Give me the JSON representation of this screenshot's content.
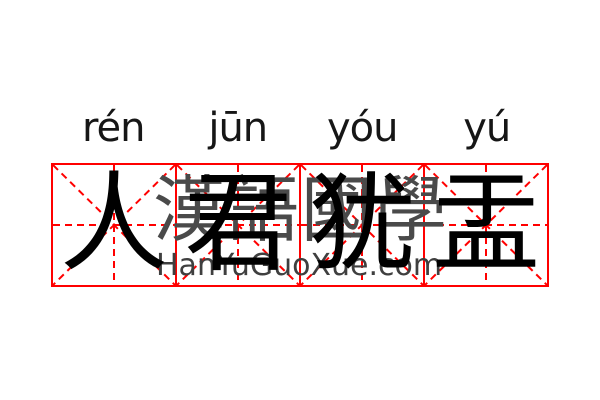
{
  "colors": {
    "grid_red": "#ff0000",
    "ink_black": "#000000",
    "watermark_gray": "#4a4a4a",
    "site_gray": "#3f3f3f",
    "pinyin_black": "#161616",
    "background": "#ffffff"
  },
  "phrase": {
    "characters": [
      {
        "hanzi": "人",
        "pinyin": "rén"
      },
      {
        "hanzi": "君",
        "pinyin": "jūn"
      },
      {
        "hanzi": "犹",
        "pinyin": "yóu"
      },
      {
        "hanzi": "盂",
        "pinyin": "yú"
      }
    ]
  },
  "watermark": {
    "cjk": "漢語國學",
    "site": "HanYuGuoXue.com"
  }
}
